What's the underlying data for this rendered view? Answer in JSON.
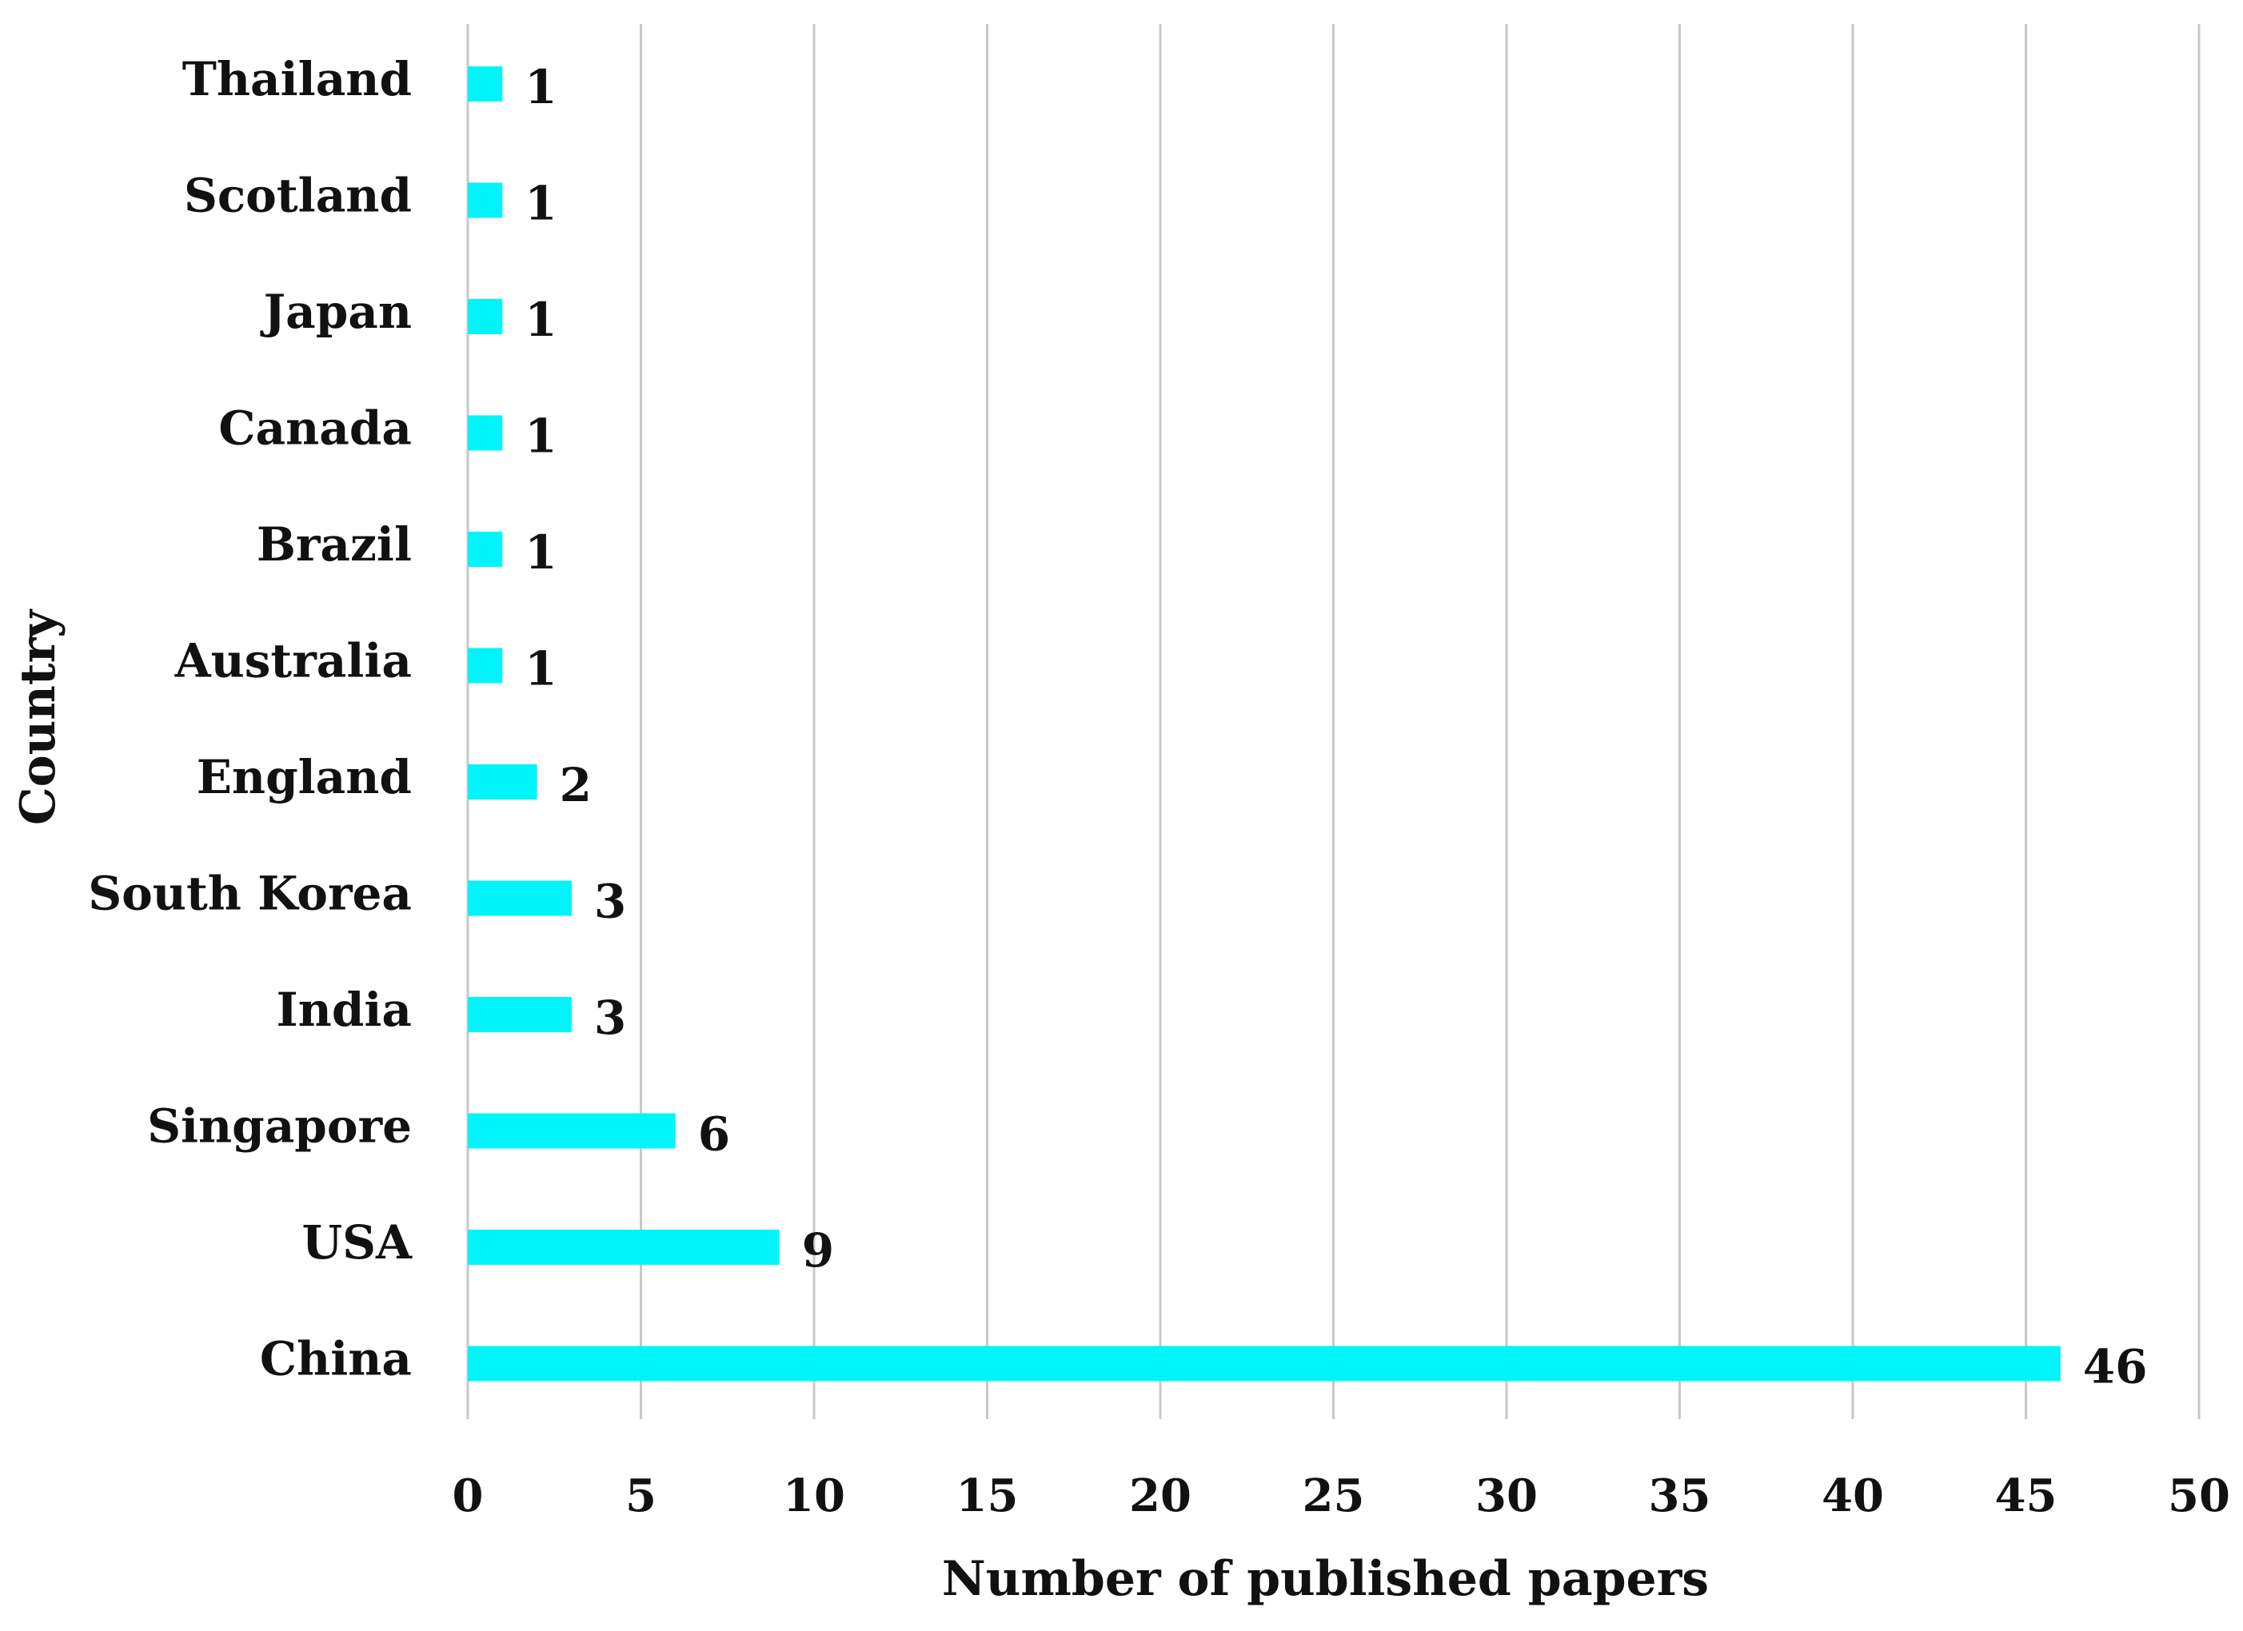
{
  "chart_data": {
    "type": "bar",
    "orientation": "horizontal",
    "title": "",
    "xlabel": "Number of published papers",
    "ylabel": "Country",
    "categories": [
      "Thailand",
      "Scotland",
      "Japan",
      "Canada",
      "Brazil",
      "Australia",
      "England",
      "South Korea",
      "India",
      "Singapore",
      "USA",
      "China"
    ],
    "values": [
      1,
      1,
      1,
      1,
      1,
      1,
      2,
      3,
      3,
      6,
      9,
      46
    ],
    "xlim": [
      0,
      50
    ],
    "xticks": [
      "0",
      "5",
      "10",
      "15",
      "20",
      "25",
      "30",
      "35",
      "40",
      "45",
      "50"
    ],
    "grid": "vertical",
    "legend": "none",
    "data_labels": true,
    "colors": {
      "bar": "#00F5FA",
      "grid": "#C8C8C8",
      "axis": "#C8C8C8",
      "text": "#111111"
    }
  }
}
